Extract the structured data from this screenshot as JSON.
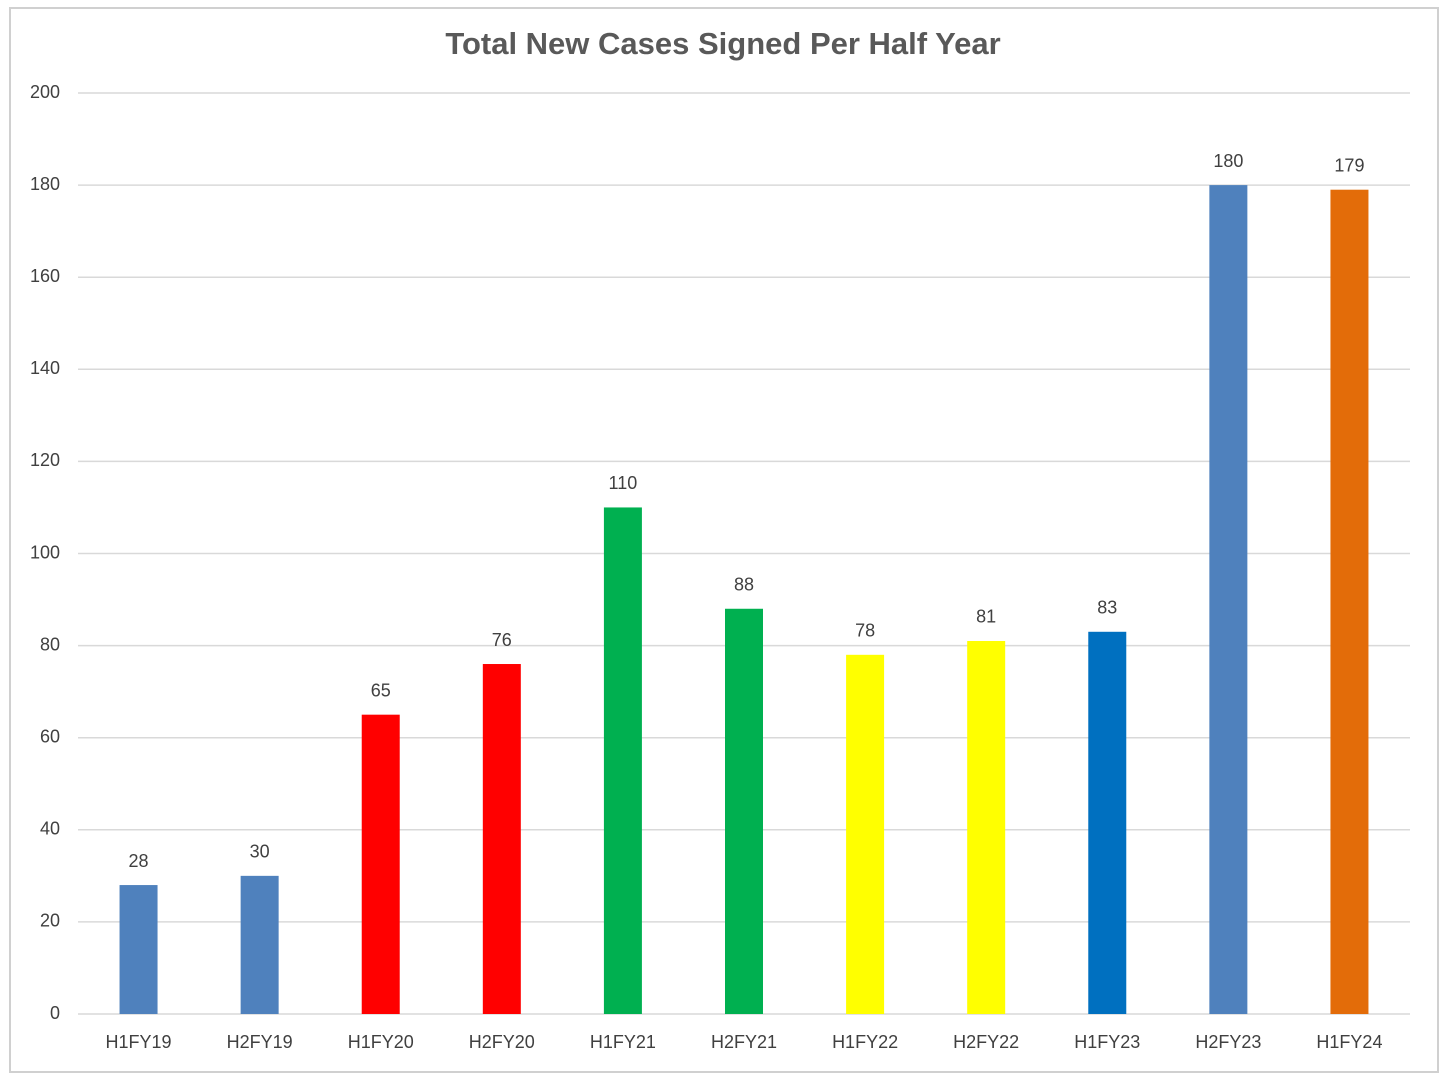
{
  "chart_data": {
    "type": "bar",
    "title": "Total New Cases Signed Per Half Year",
    "categories": [
      "H1FY19",
      "H2FY19",
      "H1FY20",
      "H2FY20",
      "H1FY21",
      "H2FY21",
      "H1FY22",
      "H2FY22",
      "H1FY23",
      "H2FY23",
      "H1FY24"
    ],
    "values": [
      28,
      30,
      65,
      76,
      110,
      88,
      78,
      81,
      83,
      180,
      179
    ],
    "colors": [
      "#4f81bd",
      "#4f81bd",
      "#ff0000",
      "#ff0000",
      "#00b050",
      "#00b050",
      "#ffff00",
      "#ffff00",
      "#0070c0",
      "#4f81bd",
      "#e36c09"
    ],
    "ylim": [
      0,
      200
    ],
    "yticks": [
      0,
      20,
      40,
      60,
      80,
      100,
      120,
      140,
      160,
      180,
      200
    ],
    "grid": true,
    "data_labels": true
  }
}
